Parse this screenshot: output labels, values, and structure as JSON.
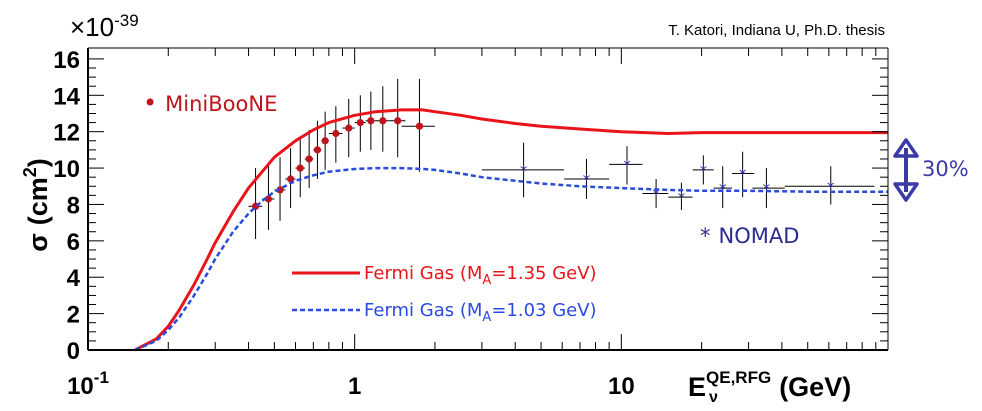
{
  "credit": "T. Katori, Indiana U, Ph.D. thesis",
  "colors": {
    "miniboone": "#c0141c",
    "nomad": "#2b2b8f",
    "fermi_135": "#e8141a",
    "fermi_103": "#2a4be0",
    "arrow": "#3a3aa8",
    "axis": "#000000"
  },
  "chart_data": {
    "type": "scatter",
    "title": "",
    "y_exponent": {
      "base": "×10",
      "exp": "-39"
    },
    "ylabel": {
      "symbol": "σ",
      "unit_open": "(cm",
      "unit_exp": "2",
      "unit_close": ")"
    },
    "xlabel": {
      "base": "E",
      "sup": "QE,RFG",
      "sub": "ν",
      "unit": "(GeV)"
    },
    "x_scale": "log",
    "xlim": [
      0.1,
      100
    ],
    "ylim": [
      0,
      16.6
    ],
    "x_ticks": [
      {
        "value": 0.1,
        "label_base": "10",
        "label_exp": "-1"
      },
      {
        "value": 1,
        "label_base": "1",
        "label_exp": ""
      },
      {
        "value": 10,
        "label_base": "10",
        "label_exp": ""
      }
    ],
    "y_ticks": [
      {
        "value": 0,
        "label": "0"
      },
      {
        "value": 2,
        "label": "2"
      },
      {
        "value": 4,
        "label": "4"
      },
      {
        "value": 6,
        "label": "6"
      },
      {
        "value": 8,
        "label": "8"
      },
      {
        "value": 10,
        "label": "10"
      },
      {
        "value": 12,
        "label": "12"
      },
      {
        "value": 14,
        "label": "14"
      },
      {
        "value": 16,
        "label": "16"
      }
    ],
    "grid": false,
    "series": [
      {
        "name": "MiniBooNE",
        "kind": "points",
        "marker": "dot",
        "color_key": "miniboone",
        "points": [
          {
            "x": 0.425,
            "y": 7.9,
            "xerr": [
              0.4,
              0.45
            ],
            "yerr": [
              6.1,
              10.0
            ]
          },
          {
            "x": 0.475,
            "y": 8.3,
            "xerr": [
              0.45,
              0.5
            ],
            "yerr": [
              6.6,
              10.2
            ]
          },
          {
            "x": 0.525,
            "y": 8.8,
            "xerr": [
              0.5,
              0.55
            ],
            "yerr": [
              7.1,
              10.6
            ]
          },
          {
            "x": 0.575,
            "y": 9.4,
            "xerr": [
              0.55,
              0.6
            ],
            "yerr": [
              7.8,
              11.1
            ]
          },
          {
            "x": 0.625,
            "y": 10.0,
            "xerr": [
              0.6,
              0.65
            ],
            "yerr": [
              8.4,
              11.6
            ]
          },
          {
            "x": 0.675,
            "y": 10.5,
            "xerr": [
              0.65,
              0.7
            ],
            "yerr": [
              8.9,
              12.1
            ]
          },
          {
            "x": 0.725,
            "y": 11.0,
            "xerr": [
              0.7,
              0.75
            ],
            "yerr": [
              9.4,
              12.6
            ]
          },
          {
            "x": 0.775,
            "y": 11.5,
            "xerr": [
              0.75,
              0.8
            ],
            "yerr": [
              9.9,
              13.1
            ]
          },
          {
            "x": 0.85,
            "y": 11.9,
            "xerr": [
              0.8,
              0.9
            ],
            "yerr": [
              10.3,
              13.4
            ]
          },
          {
            "x": 0.95,
            "y": 12.2,
            "xerr": [
              0.9,
              1.0
            ],
            "yerr": [
              10.6,
              13.8
            ]
          },
          {
            "x": 1.05,
            "y": 12.5,
            "xerr": [
              1.0,
              1.1
            ],
            "yerr": [
              10.9,
              14.0
            ]
          },
          {
            "x": 1.15,
            "y": 12.6,
            "xerr": [
              1.1,
              1.2
            ],
            "yerr": [
              11.0,
              14.2
            ]
          },
          {
            "x": 1.275,
            "y": 12.6,
            "xerr": [
              1.2,
              1.35
            ],
            "yerr": [
              10.9,
              14.5
            ]
          },
          {
            "x": 1.45,
            "y": 12.6,
            "xerr": [
              1.35,
              1.55
            ],
            "yerr": [
              10.6,
              14.9
            ]
          },
          {
            "x": 1.75,
            "y": 12.3,
            "xerr": [
              1.5,
              2.0
            ],
            "yerr": [
              9.8,
              14.9
            ]
          }
        ]
      },
      {
        "name": "NOMAD",
        "kind": "points",
        "marker": "star",
        "color_key": "nomad",
        "points": [
          {
            "x": 4.3,
            "y": 9.9,
            "xerr": [
              3.0,
              6.1
            ],
            "yerr": [
              8.4,
              11.4
            ]
          },
          {
            "x": 7.4,
            "y": 9.4,
            "xerr": [
              6.1,
              9.0
            ],
            "yerr": [
              8.3,
              10.5
            ]
          },
          {
            "x": 10.5,
            "y": 10.2,
            "xerr": [
              9.0,
              12.0
            ],
            "yerr": [
              9.1,
              11.2
            ]
          },
          {
            "x": 13.5,
            "y": 8.6,
            "xerr": [
              12.0,
              15.0
            ],
            "yerr": [
              7.8,
              9.4
            ]
          },
          {
            "x": 16.8,
            "y": 8.4,
            "xerr": [
              15.0,
              18.5
            ],
            "yerr": [
              7.7,
              9.2
            ]
          },
          {
            "x": 20.3,
            "y": 9.9,
            "xerr": [
              18.5,
              22.2
            ],
            "yerr": [
              9.1,
              10.7
            ]
          },
          {
            "x": 24.0,
            "y": 8.9,
            "xerr": [
              22.2,
              26.0
            ],
            "yerr": [
              7.8,
              10.1
            ]
          },
          {
            "x": 28.5,
            "y": 9.7,
            "xerr": [
              26.0,
              31.5
            ],
            "yerr": [
              8.4,
              10.9
            ]
          },
          {
            "x": 35.0,
            "y": 8.9,
            "xerr": [
              31.0,
              41.0
            ],
            "yerr": [
              7.8,
              10.0
            ]
          },
          {
            "x": 61.0,
            "y": 9.0,
            "xerr": [
              41.0,
              89.0
            ],
            "yerr": [
              8.0,
              10.1
            ]
          }
        ]
      },
      {
        "name": "Fermi Gas (M_A=1.35 GeV)",
        "kind": "line",
        "style": "solid",
        "color_key": "fermi_135",
        "x": [
          0.15,
          0.18,
          0.2,
          0.22,
          0.25,
          0.28,
          0.3,
          0.35,
          0.4,
          0.45,
          0.5,
          0.6,
          0.7,
          0.8,
          1.0,
          1.2,
          1.5,
          1.8,
          2.0,
          2.5,
          3.0,
          4.0,
          5.0,
          7.0,
          10.0,
          15.0,
          20.0,
          30.0,
          50.0,
          100.0
        ],
        "y": [
          0.0,
          0.6,
          1.3,
          2.2,
          3.6,
          5.0,
          5.9,
          7.6,
          8.9,
          9.8,
          10.6,
          11.5,
          12.1,
          12.5,
          12.9,
          13.1,
          13.2,
          13.2,
          13.1,
          12.9,
          12.7,
          12.45,
          12.3,
          12.15,
          12.0,
          11.9,
          11.95,
          11.95,
          11.95,
          11.95
        ]
      },
      {
        "name": "Fermi Gas (M_A=1.03 GeV)",
        "kind": "line",
        "style": "dashed",
        "color_key": "fermi_103",
        "x": [
          0.15,
          0.18,
          0.2,
          0.22,
          0.25,
          0.28,
          0.3,
          0.35,
          0.4,
          0.45,
          0.5,
          0.6,
          0.7,
          0.8,
          1.0,
          1.2,
          1.5,
          1.8,
          2.0,
          2.5,
          3.0,
          4.0,
          5.0,
          7.0,
          10.0,
          15.0,
          20.0,
          30.0,
          50.0,
          100.0
        ],
        "y": [
          0.0,
          0.5,
          1.1,
          1.8,
          3.0,
          4.2,
          5.0,
          6.5,
          7.5,
          8.2,
          8.7,
          9.3,
          9.6,
          9.8,
          9.95,
          10.0,
          10.0,
          9.95,
          9.9,
          9.7,
          9.5,
          9.3,
          9.15,
          9.0,
          8.9,
          8.8,
          8.75,
          8.75,
          8.7,
          8.7
        ]
      }
    ],
    "legend": [
      {
        "label": "Fermi Gas (M",
        "sub": "A",
        "rest": "=1.35 GeV)",
        "color_key": "fermi_135",
        "style": "solid"
      },
      {
        "label": "Fermi Gas (M",
        "sub": "A",
        "rest": "=1.03 GeV)",
        "color_key": "fermi_103",
        "style": "dashed"
      }
    ],
    "annotations": {
      "miniboone_label": {
        "marker": "•",
        "text": "MiniBooNE"
      },
      "nomad_label": {
        "marker": "*",
        "text": "NOMAD"
      },
      "gap_label": "30%"
    }
  }
}
